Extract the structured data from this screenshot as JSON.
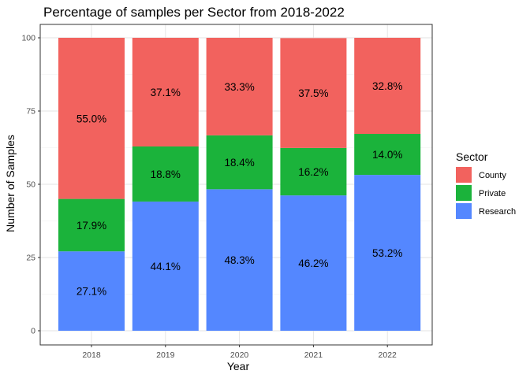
{
  "chart_data": {
    "type": "bar",
    "stacked": true,
    "title": "Percentage of samples per Sector from 2018-2022",
    "xlabel": "Year",
    "ylabel": "Number of Samples",
    "categories": [
      "2018",
      "2019",
      "2020",
      "2021",
      "2022"
    ],
    "ylim": [
      0,
      100
    ],
    "yticks": [
      0,
      25,
      50,
      75,
      100
    ],
    "grid": true,
    "legend": {
      "title": "Sector",
      "placement": "right"
    },
    "series": [
      {
        "name": "Research",
        "color": "#5487FF",
        "values": [
          27.1,
          44.1,
          48.3,
          46.2,
          53.2
        ],
        "labels": [
          "27.1%",
          "44.1%",
          "48.3%",
          "46.2%",
          "53.2%"
        ]
      },
      {
        "name": "Private",
        "color": "#1BB33B",
        "values": [
          17.9,
          18.8,
          18.4,
          16.2,
          14.0
        ],
        "labels": [
          "17.9%",
          "18.8%",
          "18.4%",
          "16.2%",
          "14.0%"
        ]
      },
      {
        "name": "County",
        "color": "#F2625E",
        "values": [
          55.0,
          37.1,
          33.3,
          37.5,
          32.8
        ],
        "labels": [
          "55.0%",
          "37.1%",
          "33.3%",
          "37.5%",
          "32.8%"
        ]
      }
    ],
    "legend_order": [
      "County",
      "Private",
      "Research"
    ]
  }
}
